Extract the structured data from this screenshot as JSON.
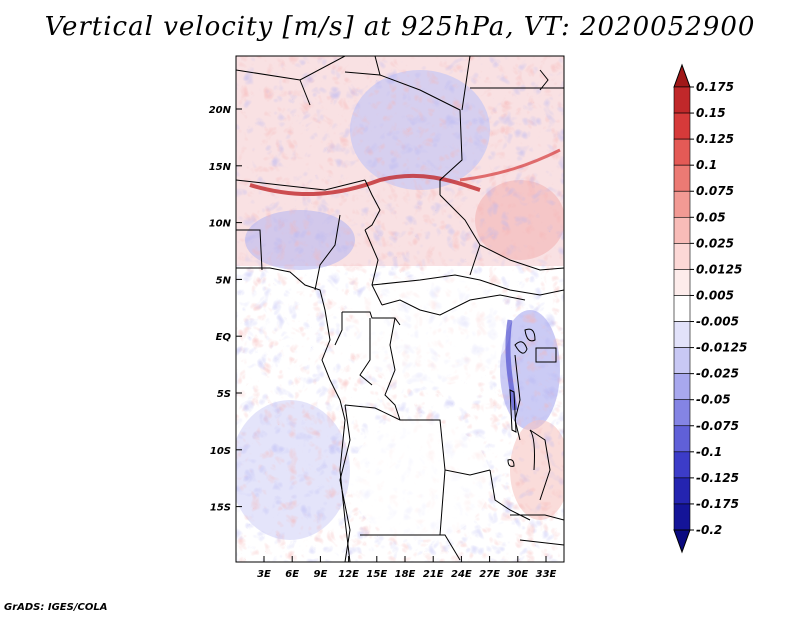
{
  "title": "Vertical velocity [m/s] at 925hPa, VT: 2020052900",
  "credit": "GrADS: IGES/COLA",
  "map": {
    "lat_labels": [
      "20N",
      "15N",
      "10N",
      "5N",
      "EQ",
      "5S",
      "10S",
      "15S"
    ],
    "lon_labels": [
      "3E",
      "6E",
      "9E",
      "12E",
      "15E",
      "18E",
      "21E",
      "24E",
      "27E",
      "30E",
      "33E"
    ]
  },
  "colorbar": {
    "labels": [
      "0.175",
      "0.15",
      "0.125",
      "0.1",
      "0.075",
      "0.05",
      "0.025",
      "0.0125",
      "0.005",
      "-0.005",
      "-0.0125",
      "-0.025",
      "-0.05",
      "-0.075",
      "-0.1",
      "-0.125",
      "-0.175",
      "-0.2"
    ],
    "colors": [
      "#a01818",
      "#c0282a",
      "#d63a3a",
      "#e45a56",
      "#ec7a74",
      "#f29a94",
      "#f8bcb8",
      "#fcd8d6",
      "#fdeceb",
      "#ffffff",
      "#e2e2fa",
      "#c8c8f4",
      "#a8a8ee",
      "#8484e4",
      "#6060d8",
      "#3c3cc8",
      "#2424b0",
      "#141498",
      "#0a0a80"
    ]
  }
}
